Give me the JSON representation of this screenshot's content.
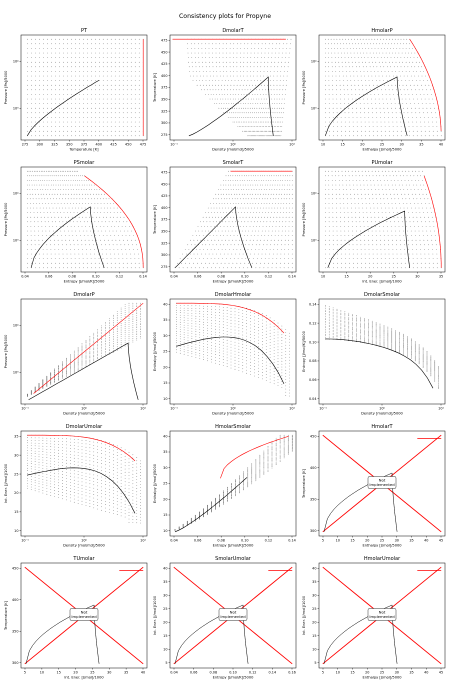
{
  "figure": {
    "title": "Consistency plots for Propyne"
  },
  "colors": {
    "grid_dots": "#000000",
    "boundary": "#ff0000",
    "curve": "#000000",
    "not_implemented_line": "#ff0000"
  },
  "not_implemented_label": "Not Implemented",
  "chart_data": [
    {
      "type": "scatter",
      "title": "PT",
      "xlabel": "Temperature [K]",
      "ylabel": "Pressure [Pa]/5000",
      "xscale": "linear",
      "yscale": "log",
      "xticks": [
        "275",
        "300",
        "325",
        "350",
        "375",
        "400",
        "425",
        "450",
        "475"
      ],
      "yticks": [
        "10³",
        "10⁴"
      ],
      "xlim": [
        265,
        480
      ],
      "ylim_log": [
        2.3,
        4.6
      ]
    },
    {
      "type": "scatter",
      "title": "DmolarT",
      "xlabel": "Density [mol/m3]/5000",
      "ylabel": "Temperature [K]",
      "xscale": "log",
      "yscale": "linear",
      "xticks": [
        "10⁻¹",
        "10⁰",
        "10¹"
      ],
      "yticks": [
        "275",
        "300",
        "325",
        "350",
        "375",
        "400",
        "425",
        "450",
        "475"
      ],
      "xlim_log": [
        -1.5,
        1.3
      ],
      "ylim": [
        265,
        480
      ]
    },
    {
      "type": "scatter",
      "title": "HmolarP",
      "xlabel": "Enthalpy [J/mol]/5000",
      "ylabel": "Pressure [Pa]/5000",
      "xscale": "linear",
      "yscale": "log",
      "xticks": [
        "10",
        "15",
        "20",
        "25",
        "30",
        "35",
        "40"
      ],
      "yticks": [
        "10³",
        "10⁴"
      ],
      "xlim": [
        8,
        42
      ],
      "ylim_log": [
        2.3,
        4.6
      ]
    },
    {
      "type": "scatter",
      "title": "PSmolar",
      "xlabel": "Entropy [J/mol/K]/5000",
      "ylabel": "Pressure [Pa]/5000",
      "xscale": "linear",
      "yscale": "log",
      "xticks": [
        "0.04",
        "0.06",
        "0.08",
        "0.10",
        "0.12",
        "0.14"
      ],
      "yticks": [
        "10³",
        "10⁴"
      ],
      "xlim": [
        0.03,
        0.15
      ],
      "ylim_log": [
        2.3,
        4.6
      ]
    },
    {
      "type": "scatter",
      "title": "SmolarT",
      "xlabel": "Entropy [J/mol/K]/5000",
      "ylabel": "Temperature [K]",
      "xscale": "linear",
      "yscale": "linear",
      "xticks": [
        "0.04",
        "0.06",
        "0.08",
        "0.10",
        "0.12",
        "0.14"
      ],
      "yticks": [
        "275",
        "300",
        "325",
        "350",
        "375",
        "400",
        "425",
        "450",
        "475"
      ],
      "xlim": [
        0.03,
        0.15
      ],
      "ylim": [
        265,
        480
      ]
    },
    {
      "type": "scatter",
      "title": "PUmolar",
      "xlabel": "Int. Ener. [J/mol]/1000",
      "ylabel": "Pressure [Pa]/5000",
      "xscale": "linear",
      "yscale": "log",
      "xticks": [
        "10",
        "15",
        "20",
        "25",
        "30",
        "35"
      ],
      "yticks": [
        "10³",
        "10⁴"
      ],
      "xlim": [
        7,
        38
      ],
      "ylim_log": [
        2.3,
        4.6
      ]
    },
    {
      "type": "scatter",
      "title": "DmolarP",
      "xlabel": "Density [mol/m3]/5000",
      "ylabel": "Pressure [Pa]/5000",
      "xscale": "log",
      "yscale": "log",
      "xticks": [
        "10⁻¹",
        "10⁰",
        "10¹"
      ],
      "yticks": [
        "10³",
        "10⁴"
      ],
      "xlim_log": [
        -1.5,
        1.3
      ],
      "ylim_log": [
        2.3,
        4.6
      ]
    },
    {
      "type": "scatter",
      "title": "DmolarHmolar",
      "xlabel": "Density [mol/m3]/5000",
      "ylabel": "Enthalpy [J/mol]/5000",
      "xscale": "log",
      "yscale": "linear",
      "xticks": [
        "10⁻¹",
        "10⁰",
        "10¹"
      ],
      "yticks": [
        "10",
        "15",
        "20",
        "25",
        "30",
        "35",
        "40"
      ],
      "xlim_log": [
        -1.5,
        1.3
      ],
      "ylim": [
        8,
        42
      ]
    },
    {
      "type": "scatter",
      "title": "DmolarSmolar",
      "xlabel": "Density [mol/m3]/5000",
      "ylabel": "Entropy [J/mol/K]/5000",
      "xscale": "log",
      "yscale": "linear",
      "xticks": [
        "10⁻¹",
        "10⁰",
        "10¹"
      ],
      "yticks": [
        "0.04",
        "0.06",
        "0.08",
        "0.10",
        "0.12",
        "0.14"
      ],
      "xlim_log": [
        -1.5,
        1.3
      ],
      "ylim": [
        0.03,
        0.155
      ]
    },
    {
      "type": "scatter",
      "title": "DmolarUmolar",
      "xlabel": "Density [mol/m3]/5000",
      "ylabel": "Int. Ener. [J/mol]/1000",
      "xscale": "log",
      "yscale": "linear",
      "xticks": [
        "10⁻¹",
        "10⁰",
        "10¹"
      ],
      "yticks": [
        "10",
        "15",
        "20",
        "25",
        "30",
        "35"
      ],
      "xlim_log": [
        -1.5,
        1.3
      ],
      "ylim": [
        7,
        38
      ]
    },
    {
      "type": "scatter",
      "title": "HmolarSmolar",
      "xlabel": "Entropy [J/mol/K]/5000",
      "ylabel": "Enthalpy [J/mol]/5000",
      "xscale": "linear",
      "yscale": "linear",
      "xticks": [
        "0.04",
        "0.06",
        "0.08",
        "0.10",
        "0.12",
        "0.14"
      ],
      "yticks": [
        "10",
        "15",
        "20",
        "25",
        "30",
        "35",
        "40"
      ],
      "xlim": [
        0.03,
        0.15
      ],
      "ylim": [
        8,
        42
      ]
    },
    {
      "type": "line",
      "title": "HmolarT",
      "not_implemented": true,
      "xlabel": "Enthalpy [J/mol]/5000",
      "ylabel": "Temperature [K]",
      "xscale": "linear",
      "yscale": "linear",
      "xticks": [
        "5",
        "10",
        "15",
        "20",
        "25",
        "30",
        "35",
        "40",
        "45"
      ],
      "yticks": [
        "300",
        "350",
        "400",
        "450"
      ],
      "xlim": [
        4,
        46
      ],
      "ylim": [
        265,
        495
      ]
    },
    {
      "type": "line",
      "title": "TUmolar",
      "not_implemented": true,
      "xlabel": "Int. Ener. [J/mol]/1000",
      "ylabel": "Temperature [K]",
      "xscale": "linear",
      "yscale": "linear",
      "xticks": [
        "5",
        "10",
        "15",
        "20",
        "25",
        "30",
        "35",
        "40"
      ],
      "yticks": [
        "300",
        "350",
        "400",
        "450"
      ],
      "xlim": [
        4,
        41
      ],
      "ylim": [
        265,
        495
      ]
    },
    {
      "type": "line",
      "title": "SmolarUmolar",
      "not_implemented": true,
      "xlabel": "Entropy [J/mol/K]/5000",
      "ylabel": "Int. Ener. [J/mol]/1000",
      "xscale": "linear",
      "yscale": "linear",
      "xticks": [
        "0.04",
        "0.06",
        "0.08",
        "0.10",
        "0.12",
        "0.14",
        "0.16"
      ],
      "yticks": [
        "5",
        "10",
        "15",
        "20",
        "25",
        "30",
        "35",
        "40"
      ],
      "xlim": [
        0.03,
        0.165
      ],
      "ylim": [
        4,
        41
      ]
    },
    {
      "type": "line",
      "title": "HmolarUmolar",
      "not_implemented": true,
      "xlabel": "Enthalpy [J/mol]/5000",
      "ylabel": "Int. Ener. [J/mol]/1000",
      "xscale": "linear",
      "yscale": "linear",
      "xticks": [
        "5",
        "10",
        "15",
        "20",
        "25",
        "30",
        "35",
        "40",
        "45"
      ],
      "yticks": [
        "5",
        "10",
        "15",
        "20",
        "25",
        "30",
        "35",
        "40"
      ],
      "xlim": [
        4,
        46
      ],
      "ylim": [
        4,
        41
      ]
    }
  ]
}
